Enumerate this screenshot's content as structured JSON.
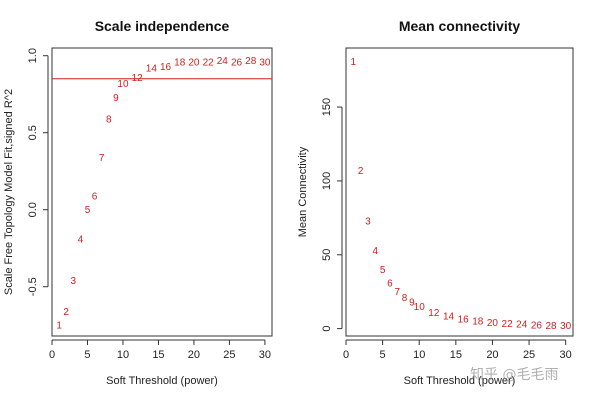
{
  "watermark": "知乎 @毛毛雨",
  "colors": {
    "points": "#cc1f1f",
    "cutoff_line": "#cc1f1f",
    "axis": "#333333"
  },
  "chart_data": [
    {
      "type": "scatter",
      "title": "Scale independence",
      "xlabel": "Soft Threshold (power)",
      "ylabel": "Scale Free Topology Model Fit,signed R^2",
      "xlim": [
        0,
        31
      ],
      "ylim": [
        -0.82,
        1.05
      ],
      "xticks": [
        0,
        5,
        10,
        15,
        20,
        25,
        30
      ],
      "yticks": [
        -0.5,
        0.0,
        0.5,
        1.0
      ],
      "ytick_labels": [
        "-0.5",
        "0.0",
        "0.5",
        "1.0"
      ],
      "hline": 0.85,
      "grid": false,
      "points": [
        {
          "x": 1,
          "y": -0.75,
          "label": "1"
        },
        {
          "x": 2,
          "y": -0.66,
          "label": "2"
        },
        {
          "x": 3,
          "y": -0.46,
          "label": "3"
        },
        {
          "x": 4,
          "y": -0.19,
          "label": "4"
        },
        {
          "x": 5,
          "y": 0.0,
          "label": "5"
        },
        {
          "x": 6,
          "y": 0.09,
          "label": "6"
        },
        {
          "x": 7,
          "y": 0.34,
          "label": "7"
        },
        {
          "x": 8,
          "y": 0.59,
          "label": "8"
        },
        {
          "x": 9,
          "y": 0.73,
          "label": "9"
        },
        {
          "x": 10,
          "y": 0.82,
          "label": "10"
        },
        {
          "x": 12,
          "y": 0.86,
          "label": "12"
        },
        {
          "x": 14,
          "y": 0.92,
          "label": "14"
        },
        {
          "x": 16,
          "y": 0.93,
          "label": "16"
        },
        {
          "x": 18,
          "y": 0.96,
          "label": "18"
        },
        {
          "x": 20,
          "y": 0.96,
          "label": "20"
        },
        {
          "x": 22,
          "y": 0.96,
          "label": "22"
        },
        {
          "x": 24,
          "y": 0.97,
          "label": "24"
        },
        {
          "x": 26,
          "y": 0.96,
          "label": "26"
        },
        {
          "x": 28,
          "y": 0.97,
          "label": "28"
        },
        {
          "x": 30,
          "y": 0.96,
          "label": "30"
        }
      ]
    },
    {
      "type": "scatter",
      "title": "Mean connectivity",
      "xlabel": "Soft Threshold (power)",
      "ylabel": "Mean Connectivity",
      "xlim": [
        0,
        31
      ],
      "ylim": [
        -5,
        190
      ],
      "xticks": [
        0,
        5,
        10,
        15,
        20,
        25,
        30
      ],
      "yticks": [
        0,
        50,
        100,
        150
      ],
      "ytick_labels": [
        "0",
        "50",
        "100",
        "150"
      ],
      "grid": false,
      "points": [
        {
          "x": 1,
          "y": 181,
          "label": "1"
        },
        {
          "x": 2,
          "y": 107,
          "label": "2"
        },
        {
          "x": 3,
          "y": 73,
          "label": "3"
        },
        {
          "x": 4,
          "y": 53,
          "label": "4"
        },
        {
          "x": 5,
          "y": 40,
          "label": "5"
        },
        {
          "x": 6,
          "y": 31,
          "label": "6"
        },
        {
          "x": 7,
          "y": 25,
          "label": "7"
        },
        {
          "x": 8,
          "y": 21,
          "label": "8"
        },
        {
          "x": 9,
          "y": 18,
          "label": "9"
        },
        {
          "x": 10,
          "y": 15,
          "label": "10"
        },
        {
          "x": 12,
          "y": 11,
          "label": "12"
        },
        {
          "x": 14,
          "y": 8.5,
          "label": "14"
        },
        {
          "x": 16,
          "y": 6.5,
          "label": "16"
        },
        {
          "x": 18,
          "y": 5,
          "label": "18"
        },
        {
          "x": 20,
          "y": 4,
          "label": "20"
        },
        {
          "x": 22,
          "y": 3.5,
          "label": "22"
        },
        {
          "x": 24,
          "y": 3,
          "label": "24"
        },
        {
          "x": 26,
          "y": 2.5,
          "label": "26"
        },
        {
          "x": 28,
          "y": 2,
          "label": "28"
        },
        {
          "x": 30,
          "y": 2,
          "label": "30"
        }
      ]
    }
  ]
}
